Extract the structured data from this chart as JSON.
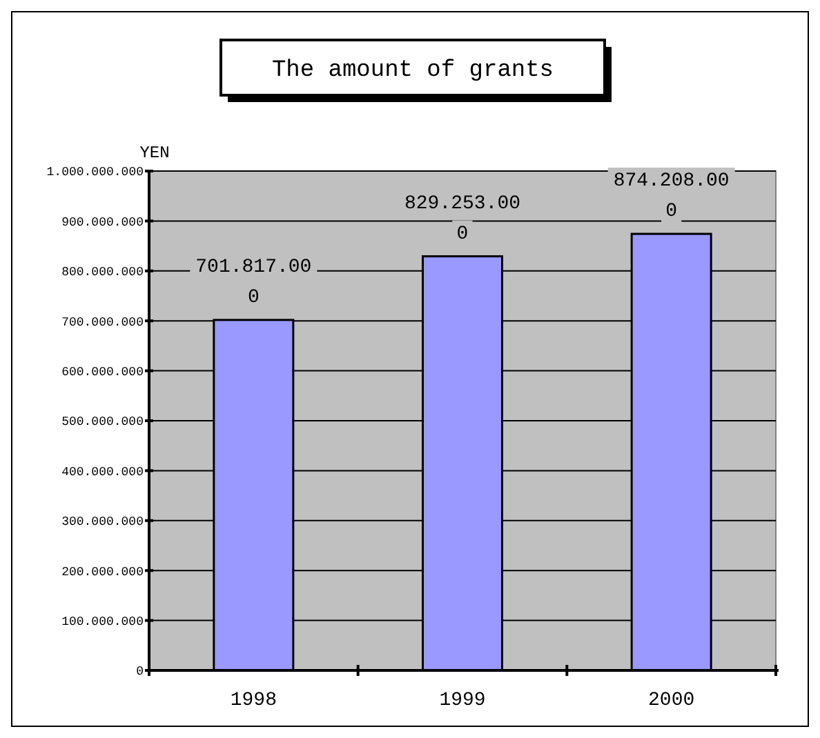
{
  "chart_data": {
    "type": "bar",
    "title": "The amount of grants",
    "ylabel": "YEN",
    "categories": [
      "1998",
      "1999",
      "2000"
    ],
    "values": [
      701817000,
      829253000,
      874208000
    ],
    "value_labels": [
      "701.817.000",
      "829.253.000",
      "874.208.000"
    ],
    "color": "#9999ff",
    "ylim": [
      0,
      1000000000
    ],
    "yticks": [
      0,
      {
        "value": 100000000,
        "label": "100.000.000"
      },
      {
        "value": 200000000,
        "label": "200.000.000"
      },
      {
        "value": 300000000,
        "label": "300.000.000"
      },
      {
        "value": 400000000,
        "label": "400.000.000"
      },
      {
        "value": 500000000,
        "label": "500.000.000"
      },
      {
        "value": 600000000,
        "label": "600.000.000"
      },
      {
        "value": 700000000,
        "label": "700.000.000"
      },
      {
        "value": 800000000,
        "label": "800.000.000"
      },
      {
        "value": 900000000,
        "label": "900.000.000"
      },
      {
        "value": 1000000000,
        "label": "1.000.000.000"
      }
    ],
    "grid": "y"
  }
}
